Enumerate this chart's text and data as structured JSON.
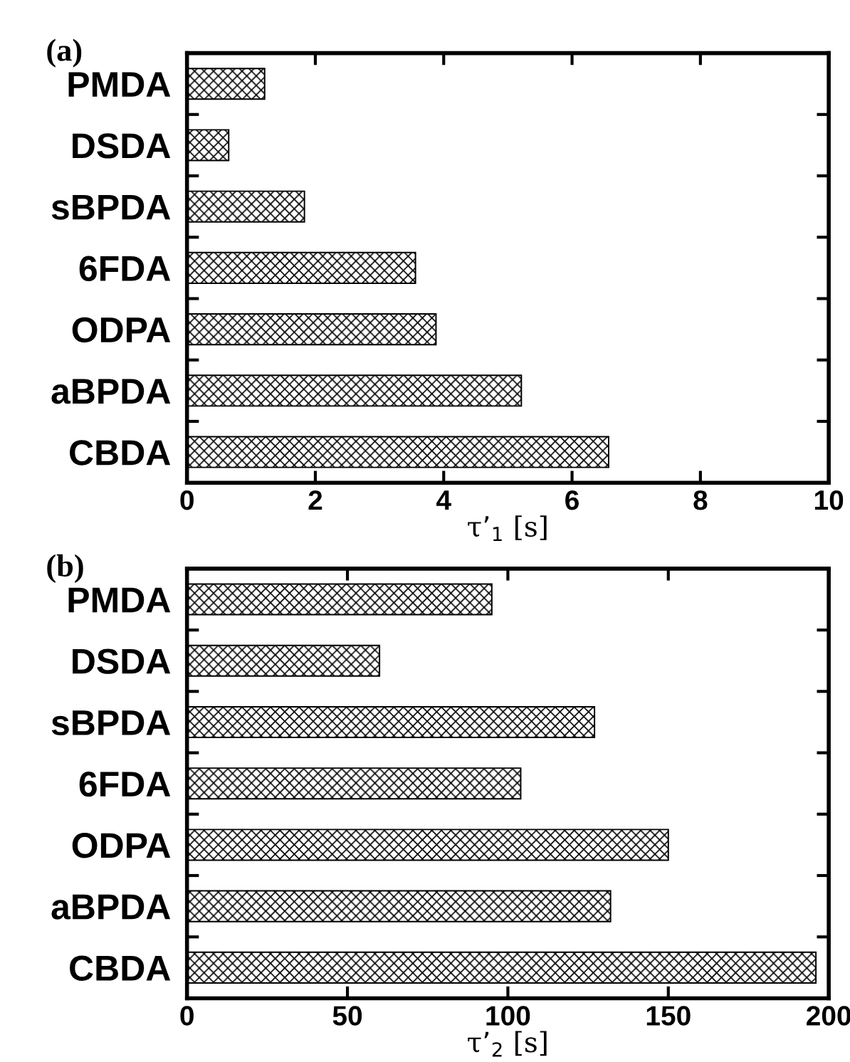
{
  "chart_data": [
    {
      "type": "bar",
      "orientation": "horizontal",
      "title": "(a)",
      "xlabel": "τ’$_{1}$ [s]",
      "categories": [
        "PMDA",
        "DSDA",
        "sBPDA",
        "6FDA",
        "ODPA",
        "aBPDA",
        "CBDA"
      ],
      "values": [
        1.21,
        0.65,
        1.83,
        3.56,
        3.88,
        5.21,
        6.57
      ],
      "color": "#000000",
      "xlim": [
        0,
        10
      ],
      "xticks": [
        0,
        2,
        4,
        6,
        8,
        10
      ],
      "grid": false,
      "legend": false
    },
    {
      "type": "bar",
      "orientation": "horizontal",
      "title": "(b)",
      "xlabel": "τ’$_{2}$ [s]",
      "categories": [
        "PMDA",
        "DSDA",
        "sBPDA",
        "6FDA",
        "ODPA",
        "aBPDA",
        "CBDA"
      ],
      "values": [
        95,
        60,
        127,
        104,
        150,
        132,
        196
      ],
      "color": "#000000",
      "xlim": [
        0,
        200
      ],
      "xticks": [
        0,
        50,
        100,
        150,
        200
      ],
      "grid": false,
      "legend": false
    }
  ]
}
